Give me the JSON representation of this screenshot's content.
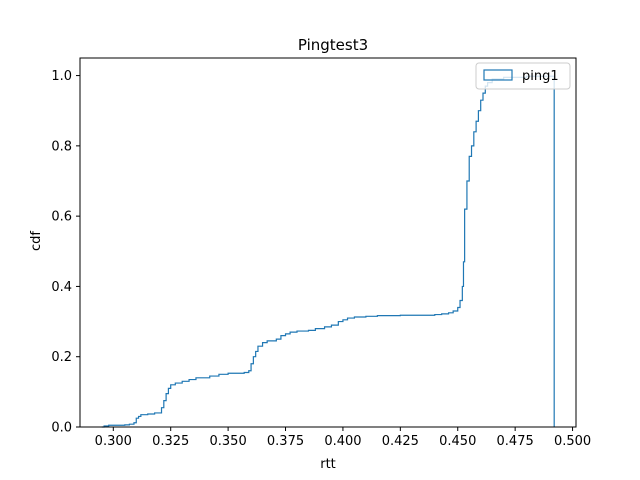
{
  "chart_data": {
    "type": "line",
    "title": "Pingtest3",
    "xlabel": "rtt",
    "ylabel": "cdf",
    "xlim": [
      0.2855,
      0.5015
    ],
    "ylim": [
      0.0,
      1.05
    ],
    "x_ticks": [
      "0.300",
      "0.325",
      "0.350",
      "0.375",
      "0.400",
      "0.425",
      "0.450",
      "0.475",
      "0.500"
    ],
    "y_ticks": [
      "0.0",
      "0.2",
      "0.4",
      "0.6",
      "0.8",
      "1.0"
    ],
    "grid": false,
    "legend_position": "top-right",
    "series": [
      {
        "name": "ping1",
        "color": "#1f77b4",
        "step": true,
        "points": [
          [
            0.295,
            0.0
          ],
          [
            0.296,
            0.003
          ],
          [
            0.298,
            0.005
          ],
          [
            0.305,
            0.006
          ],
          [
            0.307,
            0.008
          ],
          [
            0.309,
            0.012
          ],
          [
            0.31,
            0.025
          ],
          [
            0.311,
            0.03
          ],
          [
            0.312,
            0.035
          ],
          [
            0.315,
            0.037
          ],
          [
            0.318,
            0.04
          ],
          [
            0.321,
            0.055
          ],
          [
            0.322,
            0.075
          ],
          [
            0.323,
            0.095
          ],
          [
            0.324,
            0.11
          ],
          [
            0.325,
            0.12
          ],
          [
            0.327,
            0.125
          ],
          [
            0.33,
            0.13
          ],
          [
            0.333,
            0.135
          ],
          [
            0.336,
            0.14
          ],
          [
            0.342,
            0.145
          ],
          [
            0.346,
            0.15
          ],
          [
            0.35,
            0.153
          ],
          [
            0.357,
            0.155
          ],
          [
            0.359,
            0.16
          ],
          [
            0.36,
            0.18
          ],
          [
            0.361,
            0.2
          ],
          [
            0.362,
            0.215
          ],
          [
            0.363,
            0.23
          ],
          [
            0.365,
            0.24
          ],
          [
            0.367,
            0.245
          ],
          [
            0.371,
            0.25
          ],
          [
            0.373,
            0.26
          ],
          [
            0.375,
            0.265
          ],
          [
            0.377,
            0.27
          ],
          [
            0.38,
            0.273
          ],
          [
            0.385,
            0.275
          ],
          [
            0.388,
            0.28
          ],
          [
            0.392,
            0.285
          ],
          [
            0.395,
            0.29
          ],
          [
            0.398,
            0.3
          ],
          [
            0.4,
            0.305
          ],
          [
            0.402,
            0.31
          ],
          [
            0.405,
            0.313
          ],
          [
            0.41,
            0.315
          ],
          [
            0.415,
            0.317
          ],
          [
            0.425,
            0.318
          ],
          [
            0.44,
            0.32
          ],
          [
            0.443,
            0.322
          ],
          [
            0.446,
            0.325
          ],
          [
            0.448,
            0.33
          ],
          [
            0.45,
            0.34
          ],
          [
            0.451,
            0.36
          ],
          [
            0.452,
            0.4
          ],
          [
            0.4525,
            0.47
          ],
          [
            0.453,
            0.62
          ],
          [
            0.454,
            0.7
          ],
          [
            0.455,
            0.77
          ],
          [
            0.456,
            0.8
          ],
          [
            0.457,
            0.84
          ],
          [
            0.458,
            0.87
          ],
          [
            0.459,
            0.9
          ],
          [
            0.46,
            0.93
          ],
          [
            0.461,
            0.95
          ],
          [
            0.462,
            0.97
          ],
          [
            0.463,
            0.98
          ],
          [
            0.465,
            0.99
          ],
          [
            0.47,
            0.995
          ],
          [
            0.48,
            0.998
          ],
          [
            0.492,
            1.0
          ]
        ]
      }
    ]
  }
}
